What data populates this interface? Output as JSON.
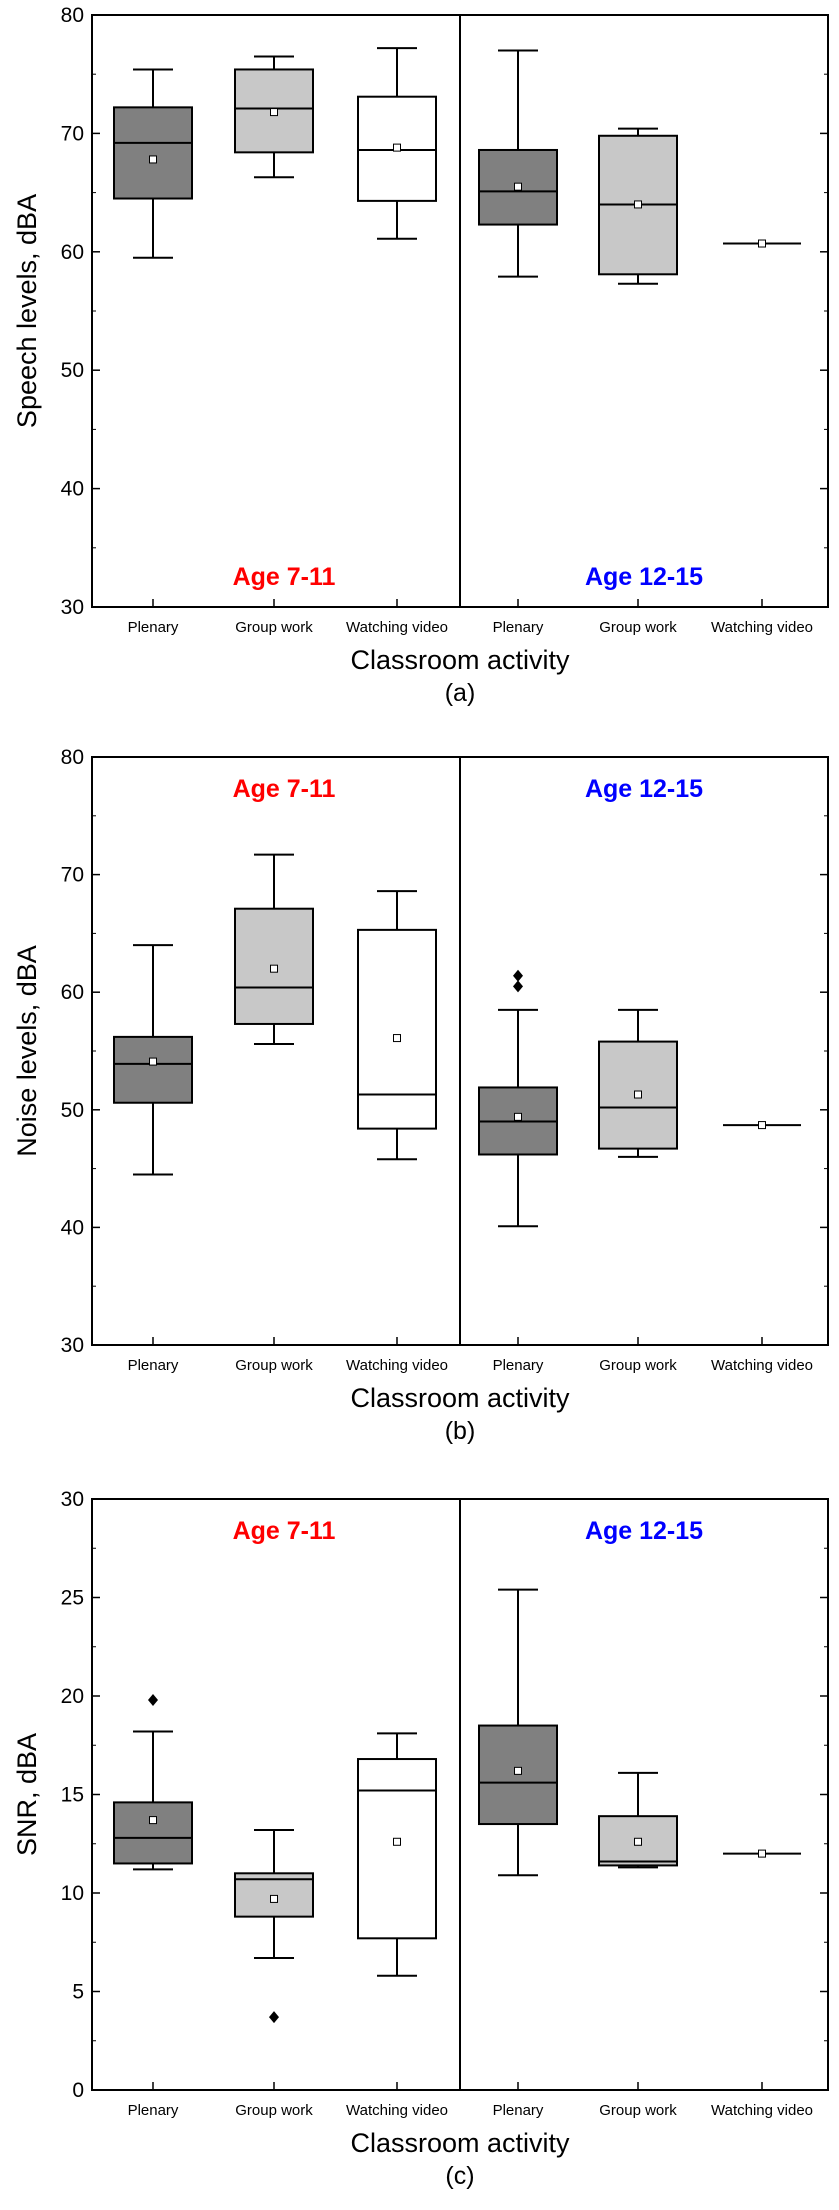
{
  "figure": {
    "xlabel": "Classroom activity",
    "categories": [
      "Plenary",
      "Group work",
      "Watching video",
      "Plenary",
      "Group work",
      "Watching video"
    ],
    "groups": [
      {
        "label": "Age 7-11",
        "color": "#ff0000"
      },
      {
        "label": "Age 12-15",
        "color": "#0000ff"
      }
    ],
    "box_fills": [
      "#808080",
      "#c8c8c8",
      "#ffffff",
      "#808080",
      "#c8c8c8",
      "#ffffff"
    ]
  },
  "chart_data": [
    {
      "type": "box",
      "panel_label": "(a)",
      "ylabel": "Speech levels, dBA",
      "xlabel": "Classroom activity",
      "ylim": [
        30,
        80
      ],
      "yticks": [
        30,
        40,
        50,
        60,
        70,
        80
      ],
      "categories": [
        "Plenary",
        "Group work",
        "Watching video",
        "Plenary",
        "Group work",
        "Watching video"
      ],
      "group_label_position": "bottom",
      "boxes": [
        {
          "group": "Age 7-11",
          "category": "Plenary",
          "whisker_low": 59.5,
          "q1": 64.5,
          "median": 69.2,
          "q3": 72.2,
          "whisker_high": 75.4,
          "mean": 67.8,
          "outliers": []
        },
        {
          "group": "Age 7-11",
          "category": "Group work",
          "whisker_low": 66.3,
          "q1": 68.4,
          "median": 72.1,
          "q3": 75.4,
          "whisker_high": 76.5,
          "mean": 71.8,
          "outliers": []
        },
        {
          "group": "Age 7-11",
          "category": "Watching video",
          "whisker_low": 61.1,
          "q1": 64.3,
          "median": 68.6,
          "q3": 73.1,
          "whisker_high": 77.2,
          "mean": 68.8,
          "outliers": []
        },
        {
          "group": "Age 12-15",
          "category": "Plenary",
          "whisker_low": 57.9,
          "q1": 62.3,
          "median": 65.1,
          "q3": 68.6,
          "whisker_high": 77.0,
          "mean": 65.5,
          "outliers": []
        },
        {
          "group": "Age 12-15",
          "category": "Group work",
          "whisker_low": 57.3,
          "q1": 58.1,
          "median": 64.0,
          "q3": 69.8,
          "whisker_high": 70.4,
          "mean": 64.0,
          "outliers": []
        },
        {
          "group": "Age 12-15",
          "category": "Watching video",
          "whisker_low": 60.7,
          "q1": 60.7,
          "median": 60.7,
          "q3": 60.7,
          "whisker_high": 60.7,
          "mean": 60.7,
          "outliers": []
        }
      ]
    },
    {
      "type": "box",
      "panel_label": "(b)",
      "ylabel": "Noise levels, dBA",
      "xlabel": "Classroom activity",
      "ylim": [
        30,
        80
      ],
      "yticks": [
        30,
        40,
        50,
        60,
        70,
        80
      ],
      "categories": [
        "Plenary",
        "Group work",
        "Watching video",
        "Plenary",
        "Group work",
        "Watching video"
      ],
      "group_label_position": "top",
      "boxes": [
        {
          "group": "Age 7-11",
          "category": "Plenary",
          "whisker_low": 44.5,
          "q1": 50.6,
          "median": 53.9,
          "q3": 56.2,
          "whisker_high": 64.0,
          "mean": 54.1,
          "outliers": []
        },
        {
          "group": "Age 7-11",
          "category": "Group work",
          "whisker_low": 55.6,
          "q1": 57.3,
          "median": 60.4,
          "q3": 67.1,
          "whisker_high": 71.7,
          "mean": 62.0,
          "outliers": []
        },
        {
          "group": "Age 7-11",
          "category": "Watching video",
          "whisker_low": 45.8,
          "q1": 48.4,
          "median": 51.3,
          "q3": 65.3,
          "whisker_high": 68.6,
          "mean": 56.1,
          "outliers": []
        },
        {
          "group": "Age 12-15",
          "category": "Plenary",
          "whisker_low": 40.1,
          "q1": 46.2,
          "median": 49.0,
          "q3": 51.9,
          "whisker_high": 58.5,
          "mean": 49.4,
          "outliers": [
            60.5,
            61.4
          ]
        },
        {
          "group": "Age 12-15",
          "category": "Group work",
          "whisker_low": 46.0,
          "q1": 46.7,
          "median": 50.2,
          "q3": 55.8,
          "whisker_high": 58.5,
          "mean": 51.3,
          "outliers": []
        },
        {
          "group": "Age 12-15",
          "category": "Watching video",
          "whisker_low": 48.7,
          "q1": 48.7,
          "median": 48.7,
          "q3": 48.7,
          "whisker_high": 48.7,
          "mean": 48.7,
          "outliers": []
        }
      ]
    },
    {
      "type": "box",
      "panel_label": "(c)",
      "ylabel": "SNR, dBA",
      "xlabel": "Classroom activity",
      "ylim": [
        0,
        30
      ],
      "yticks": [
        0,
        5,
        10,
        15,
        20,
        25,
        30
      ],
      "categories": [
        "Plenary",
        "Group work",
        "Watching video",
        "Plenary",
        "Group work",
        "Watching video"
      ],
      "group_label_position": "top",
      "boxes": [
        {
          "group": "Age 7-11",
          "category": "Plenary",
          "whisker_low": 11.2,
          "q1": 11.5,
          "median": 12.8,
          "q3": 14.6,
          "whisker_high": 18.2,
          "mean": 13.7,
          "outliers": [
            19.8
          ]
        },
        {
          "group": "Age 7-11",
          "category": "Group work",
          "whisker_low": 6.7,
          "q1": 8.8,
          "median": 10.7,
          "q3": 11.0,
          "whisker_high": 13.2,
          "mean": 9.7,
          "outliers": [
            3.7
          ]
        },
        {
          "group": "Age 7-11",
          "category": "Watching video",
          "whisker_low": 5.8,
          "q1": 7.7,
          "median": 15.2,
          "q3": 16.8,
          "whisker_high": 18.1,
          "mean": 12.6,
          "outliers": []
        },
        {
          "group": "Age 12-15",
          "category": "Plenary",
          "whisker_low": 10.9,
          "q1": 13.5,
          "median": 15.6,
          "q3": 18.5,
          "whisker_high": 25.4,
          "mean": 16.2,
          "outliers": []
        },
        {
          "group": "Age 12-15",
          "category": "Group work",
          "whisker_low": 11.3,
          "q1": 11.4,
          "median": 11.6,
          "q3": 13.9,
          "whisker_high": 16.1,
          "mean": 12.6,
          "outliers": []
        },
        {
          "group": "Age 12-15",
          "category": "Watching video",
          "whisker_low": 12.0,
          "q1": 12.0,
          "median": 12.0,
          "q3": 12.0,
          "whisker_high": 12.0,
          "mean": 12.0,
          "outliers": []
        }
      ]
    }
  ]
}
